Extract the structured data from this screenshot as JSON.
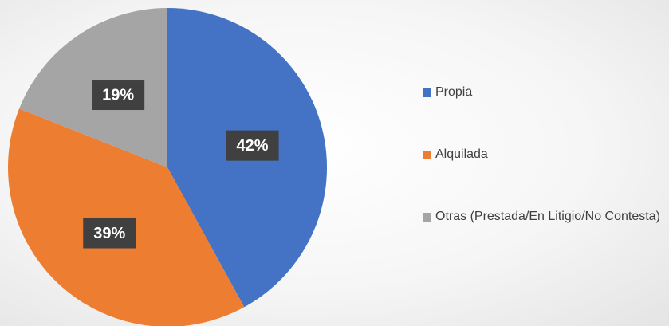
{
  "chart_data": {
    "type": "pie",
    "categories": [
      "Propia",
      "Alquilada",
      "Otras (Prestada/En Litigio/No Contesta)"
    ],
    "values": [
      42,
      39,
      19
    ],
    "value_labels": [
      "42%",
      "39%",
      "19%"
    ],
    "colors": [
      "#4472c4",
      "#ed7d31",
      "#a5a5a5"
    ]
  }
}
